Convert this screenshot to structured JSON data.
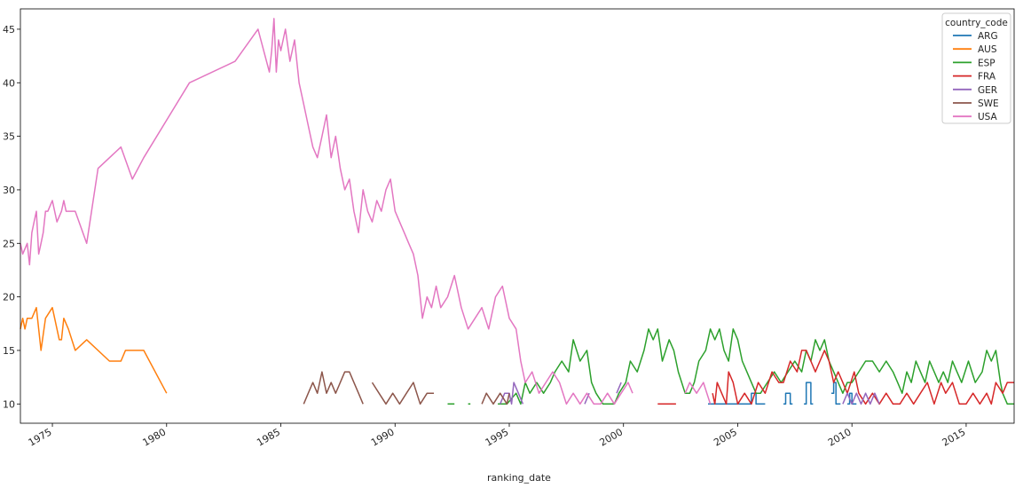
{
  "chart_data": {
    "type": "line",
    "title": "",
    "xlabel": "ranking_date",
    "ylabel": "",
    "xlim": [
      1973.6,
      2017.1
    ],
    "ylim": [
      8.2,
      46.9
    ],
    "xticks": [
      1975,
      1980,
      1985,
      1990,
      1995,
      2000,
      2005,
      2010,
      2015
    ],
    "yticks": [
      10,
      15,
      20,
      25,
      30,
      35,
      40,
      45
    ],
    "grid": false,
    "legend": {
      "title": "country_code",
      "placement": "top-right"
    },
    "series": [
      {
        "name": "ARG",
        "color": "#1f77b4",
        "x": [
          2003.7,
          2003.75,
          2003.75,
          2003.9,
          2003.9,
          2004.0,
          2004.0,
          2005.6,
          2005.6,
          2005.8,
          2005.8,
          2005.9,
          2005.9,
          2006.1,
          2006.1,
          2006.2,
          null,
          2007.0,
          2007.1,
          2007.1,
          2007.3,
          2007.3,
          2007.4,
          null,
          2007.9,
          2008.0,
          2008.0,
          2008.2,
          2008.2,
          2008.3,
          null,
          2009.1,
          2009.2,
          2009.2,
          2009.3,
          2009.3,
          2009.5,
          null,
          2009.8,
          2009.9,
          2009.9,
          2010.0,
          2010.0,
          2010.2
        ],
        "y": [
          10,
          10,
          10,
          10,
          10,
          10,
          10,
          10,
          11,
          11,
          10,
          10,
          10,
          10,
          10,
          10,
          null,
          10,
          10,
          11,
          11,
          10,
          10,
          null,
          10,
          10,
          12,
          12,
          10,
          10,
          null,
          11,
          11,
          12,
          12,
          10,
          10,
          null,
          10,
          10,
          11,
          11,
          10,
          10
        ]
      },
      {
        "name": "AUS",
        "color": "#ff7f0e",
        "x": [
          1973.6,
          1973.7,
          1973.8,
          1973.9,
          1974.1,
          1974.3,
          1974.5,
          1974.7,
          1975.0,
          1975.1,
          1975.3,
          1975.4,
          1975.5,
          1975.7,
          1976.0,
          1976.5,
          1977.5,
          1978.0,
          1978.2,
          1979.0,
          1980.0
        ],
        "y": [
          17,
          18,
          17,
          18,
          18,
          19,
          15,
          18,
          19,
          18,
          16,
          16,
          18,
          17,
          15,
          16,
          14,
          14,
          15,
          15,
          11
        ]
      },
      {
        "name": "ESP",
        "color": "#2ca02c",
        "x": [
          1992.3,
          1992.6,
          null,
          1993.2,
          1993.3,
          null,
          1994.5,
          1994.9,
          1995.3,
          1995.5,
          1995.7,
          1995.9,
          1996.2,
          1996.5,
          1996.8,
          1997.0,
          1997.3,
          1997.6,
          1997.8,
          1998.1,
          1998.4,
          1998.6,
          1998.8,
          1999.1,
          1999.3,
          1999.6,
          1999.8,
          2000.1,
          2000.3,
          2000.6,
          2000.9,
          2001.1,
          2001.3,
          2001.5,
          2001.7,
          2002.0,
          2002.2,
          2002.4,
          2002.7,
          2002.9,
          2003.1,
          2003.3,
          2003.6,
          2003.8,
          2004.0,
          2004.2,
          2004.4,
          2004.6,
          2004.8,
          2005.0,
          2005.2,
          2005.4,
          2005.6,
          2005.8,
          2006.0,
          2006.3,
          2006.6,
          2006.9,
          2007.2,
          2007.5,
          2007.8,
          2008.0,
          2008.2,
          2008.4,
          2008.6,
          2008.8,
          2009.0,
          2009.2,
          2009.4,
          2009.6,
          2009.8,
          2010.0,
          2010.3,
          2010.6,
          2010.9,
          2011.2,
          2011.5,
          2011.8,
          2012.0,
          2012.2,
          2012.4,
          2012.6,
          2012.8,
          2013.0,
          2013.2,
          2013.4,
          2013.6,
          2013.8,
          2014.0,
          2014.2,
          2014.4,
          2014.6,
          2014.8,
          2015.1,
          2015.4,
          2015.7,
          2015.9,
          2016.1,
          2016.3,
          2016.5,
          2016.6,
          2016.8,
          2017.1
        ],
        "y": [
          10,
          10,
          null,
          10,
          10,
          null,
          10,
          10,
          11,
          10,
          12,
          11,
          12,
          11,
          12,
          13,
          14,
          13,
          16,
          14,
          15,
          12,
          11,
          10,
          10,
          10,
          11,
          12,
          14,
          13,
          15,
          17,
          16,
          17,
          14,
          16,
          15,
          13,
          11,
          11,
          12,
          14,
          15,
          17,
          16,
          17,
          15,
          14,
          17,
          16,
          14,
          13,
          12,
          11,
          11,
          12,
          13,
          12,
          13,
          14,
          13,
          15,
          14,
          16,
          15,
          16,
          14,
          13,
          12,
          11,
          12,
          12,
          13,
          14,
          14,
          13,
          14,
          13,
          12,
          11,
          13,
          12,
          14,
          13,
          12,
          14,
          13,
          12,
          13,
          12,
          14,
          13,
          12,
          14,
          12,
          13,
          15,
          14,
          15,
          12,
          11,
          10,
          10
        ]
      },
      {
        "name": "FRA",
        "color": "#d62728",
        "x": [
          2001.5,
          2001.7,
          2002.0,
          2002.3,
          null,
          2003.9,
          2004.0,
          2004.1,
          2004.3,
          2004.5,
          2004.6,
          2004.8,
          2005.0,
          2005.3,
          2005.6,
          2005.9,
          2006.2,
          2006.5,
          2006.8,
          2007.0,
          2007.3,
          2007.6,
          2007.8,
          2008.0,
          2008.2,
          2008.4,
          2008.6,
          2008.8,
          2009.0,
          2009.2,
          2009.4,
          2009.6,
          2009.8,
          2010.1,
          2010.3,
          2010.6,
          2010.9,
          2011.2,
          2011.5,
          2011.8,
          2012.1,
          2012.4,
          2012.7,
          2013.0,
          2013.3,
          2013.6,
          2013.9,
          2014.1,
          2014.4,
          2014.7,
          2015.0,
          2015.3,
          2015.6,
          2015.9,
          2016.1,
          2016.3,
          2016.6,
          2016.8,
          2017.1
        ],
        "y": [
          10,
          10,
          10,
          10,
          null,
          11,
          10,
          12,
          11,
          10,
          13,
          12,
          10,
          11,
          10,
          12,
          11,
          13,
          12,
          12,
          14,
          13,
          15,
          15,
          14,
          13,
          14,
          15,
          14,
          12,
          13,
          12,
          11,
          13,
          11,
          10,
          11,
          10,
          11,
          10,
          10,
          11,
          10,
          11,
          12,
          10,
          12,
          11,
          12,
          10,
          10,
          11,
          10,
          11,
          10,
          12,
          11,
          12,
          12
        ]
      },
      {
        "name": "GER",
        "color": "#9467bd",
        "x": [
          1994.6,
          1994.8,
          1995.0,
          1995.1,
          1995.2,
          1995.4,
          1995.6,
          null,
          1998.3,
          1998.5,
          null,
          1999.7,
          1999.9,
          null,
          2009.6,
          2009.8,
          2010.0,
          2010.2,
          2010.4,
          2010.6,
          2010.8,
          2011.0,
          2011.2
        ],
        "y": [
          10,
          11,
          11,
          10,
          12,
          11,
          10,
          null,
          10,
          11,
          null,
          11,
          12,
          null,
          10,
          11,
          10,
          11,
          10,
          11,
          10,
          11,
          10
        ]
      },
      {
        "name": "SWE",
        "color": "#8c564b",
        "x": [
          1986.0,
          1986.2,
          1986.4,
          1986.6,
          1986.8,
          1987.0,
          1987.2,
          1987.4,
          1987.6,
          1987.8,
          1988.0,
          1988.2,
          1988.4,
          1988.6,
          null,
          1989.0,
          1989.3,
          1989.6,
          1989.9,
          1990.2,
          1990.5,
          1990.8,
          1991.1,
          1991.4,
          1991.7,
          null,
          1993.8,
          1994.0,
          1994.3,
          1994.6,
          1994.9,
          1995.0
        ],
        "y": [
          10,
          11,
          12,
          11,
          13,
          11,
          12,
          11,
          12,
          13,
          13,
          12,
          11,
          10,
          null,
          12,
          11,
          10,
          11,
          10,
          11,
          12,
          10,
          11,
          11,
          null,
          10,
          11,
          10,
          11,
          10,
          11
        ]
      },
      {
        "name": "USA",
        "color": "#e377c2",
        "x": [
          1973.6,
          1973.7,
          1973.9,
          1974.0,
          1974.1,
          1974.2,
          1974.3,
          1974.4,
          1974.5,
          1974.6,
          1974.7,
          1974.8,
          1975.0,
          1975.2,
          1975.4,
          1975.5,
          1975.6,
          1976.0,
          1976.5,
          1977.0,
          1978.0,
          1978.5,
          1979.0,
          1981.0,
          1983.0,
          1984.0,
          1984.5,
          1984.6,
          1984.7,
          1984.8,
          1984.9,
          1985.0,
          1985.2,
          1985.4,
          1985.6,
          1985.8,
          1986.0,
          1986.2,
          1986.4,
          1986.6,
          1986.8,
          1987.0,
          1987.2,
          1987.4,
          1987.6,
          1987.8,
          1988.0,
          1988.2,
          1988.4,
          1988.6,
          1988.8,
          1989.0,
          1989.2,
          1989.4,
          1989.6,
          1989.8,
          1990.0,
          1990.2,
          1990.4,
          1990.6,
          1990.8,
          1991.0,
          1991.2,
          1991.4,
          1991.6,
          1991.8,
          1992.0,
          1992.3,
          1992.6,
          1992.9,
          1993.2,
          1993.5,
          1993.8,
          1994.1,
          1994.4,
          1994.7,
          1995.0,
          1995.3,
          1995.5,
          1995.7,
          1996.0,
          1996.3,
          1996.6,
          1996.9,
          1997.2,
          1997.5,
          1997.8,
          1998.1,
          1998.4,
          1998.7,
          1999.0,
          1999.3,
          1999.6,
          1999.9,
          2000.2,
          2000.4,
          null,
          2002.7,
          2002.9,
          2003.2,
          2003.5,
          2003.8
        ],
        "y": [
          25,
          24,
          25,
          23,
          26,
          27,
          28,
          24,
          25,
          26,
          28,
          28,
          29,
          27,
          28,
          29,
          28,
          28,
          25,
          32,
          34,
          31,
          33,
          40,
          42,
          45,
          41,
          43,
          46,
          41,
          44,
          43,
          45,
          42,
          44,
          40,
          38,
          36,
          34,
          33,
          35,
          37,
          33,
          35,
          32,
          30,
          31,
          28,
          26,
          30,
          28,
          27,
          29,
          28,
          30,
          31,
          28,
          27,
          26,
          25,
          24,
          22,
          18,
          20,
          19,
          21,
          19,
          20,
          22,
          19,
          17,
          18,
          19,
          17,
          20,
          21,
          18,
          17,
          14,
          12,
          13,
          11,
          12,
          13,
          12,
          10,
          11,
          10,
          11,
          10,
          10,
          11,
          10,
          11,
          12,
          11,
          null,
          11,
          12,
          11,
          12,
          10
        ]
      }
    ]
  }
}
